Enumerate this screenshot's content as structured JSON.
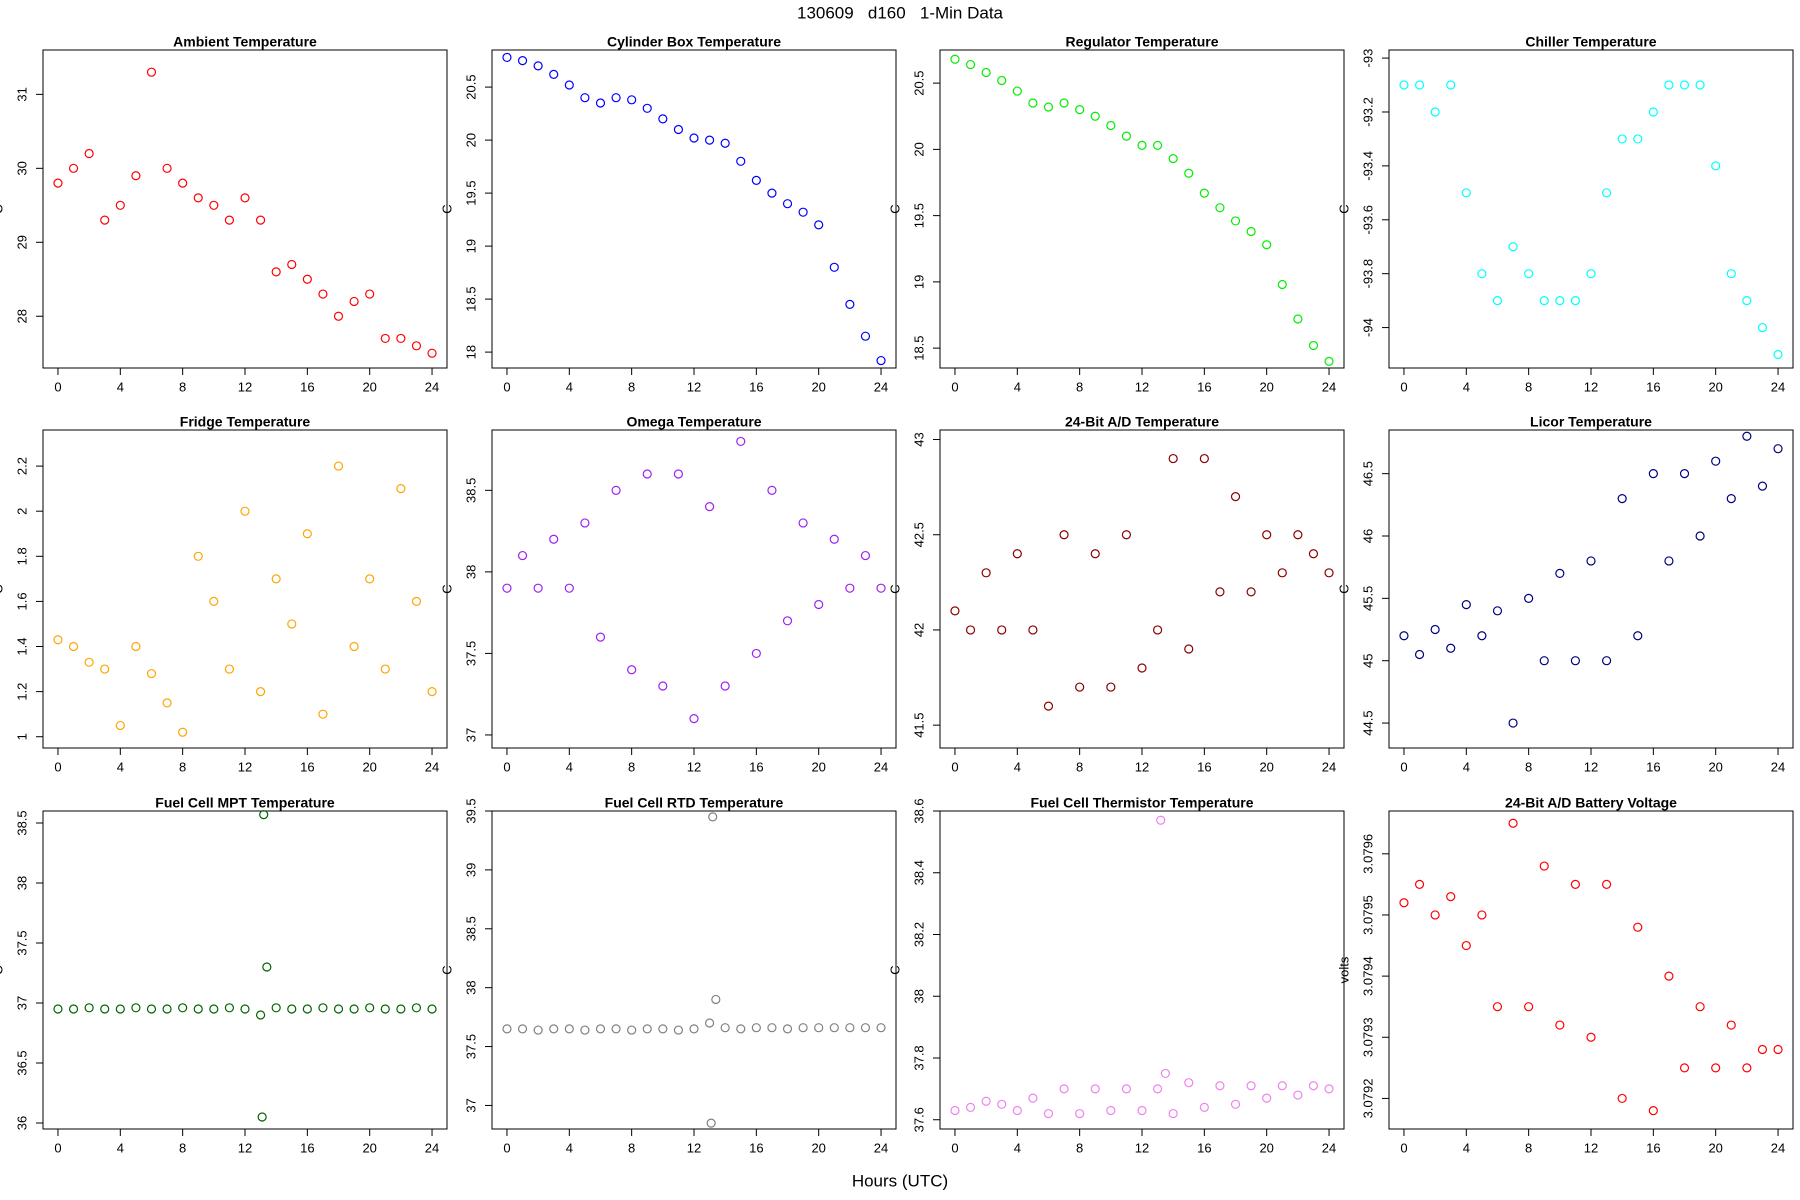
{
  "title": "130609   d160   1-Min Data",
  "x_label": "Hours (UTC)",
  "chart_data": [
    {
      "type": "scatter",
      "title": "Ambient Temperature",
      "y_label": "C",
      "color": "#ff0000",
      "x": [
        0,
        1,
        2,
        3,
        4,
        5,
        6,
        7,
        8,
        9,
        10,
        11,
        12,
        13,
        14,
        15,
        16,
        17,
        18,
        19,
        20,
        21,
        22,
        23,
        24
      ],
      "values": [
        29.8,
        30.0,
        30.2,
        29.3,
        29.5,
        29.9,
        31.3,
        30.0,
        29.8,
        29.6,
        29.5,
        29.3,
        29.6,
        29.3,
        28.6,
        28.7,
        28.5,
        28.3,
        28.0,
        28.2,
        28.3,
        27.7,
        27.7,
        27.6,
        27.5
      ],
      "xlim": [
        -0.96,
        24.96
      ],
      "xticks": [
        0,
        4,
        8,
        12,
        16,
        20,
        24
      ],
      "ylim": [
        27.3,
        31.6
      ],
      "yticks": [
        28,
        29,
        30,
        31
      ]
    },
    {
      "type": "scatter",
      "title": "Cylinder Box Temperature",
      "y_label": "C",
      "color": "#0000ff",
      "x": [
        0,
        1,
        2,
        3,
        4,
        5,
        6,
        7,
        8,
        9,
        10,
        11,
        12,
        13,
        14,
        15,
        16,
        17,
        18,
        19,
        20,
        21,
        22,
        23,
        24
      ],
      "values": [
        20.78,
        20.75,
        20.7,
        20.62,
        20.52,
        20.4,
        20.35,
        20.4,
        20.38,
        20.3,
        20.2,
        20.1,
        20.02,
        20.0,
        19.97,
        19.8,
        19.62,
        19.5,
        19.4,
        19.32,
        19.2,
        18.8,
        18.45,
        18.15,
        17.92
      ],
      "xlim": [
        -0.96,
        24.96
      ],
      "xticks": [
        0,
        4,
        8,
        12,
        16,
        20,
        24
      ],
      "ylim": [
        17.85,
        20.85
      ],
      "yticks": [
        18.0,
        18.5,
        19.0,
        19.5,
        20.0,
        20.5
      ]
    },
    {
      "type": "scatter",
      "title": "Regulator Temperature",
      "y_label": "C",
      "color": "#00ee00",
      "x": [
        0,
        1,
        2,
        3,
        4,
        5,
        6,
        7,
        8,
        9,
        10,
        11,
        12,
        13,
        14,
        15,
        16,
        17,
        18,
        19,
        20,
        21,
        22,
        23,
        24
      ],
      "values": [
        20.68,
        20.64,
        20.58,
        20.52,
        20.44,
        20.35,
        20.32,
        20.35,
        20.3,
        20.25,
        20.18,
        20.1,
        20.03,
        20.03,
        19.93,
        19.82,
        19.67,
        19.56,
        19.46,
        19.38,
        19.28,
        18.98,
        18.72,
        18.52,
        18.4
      ],
      "xlim": [
        -0.96,
        24.96
      ],
      "xticks": [
        0,
        4,
        8,
        12,
        16,
        20,
        24
      ],
      "ylim": [
        18.35,
        20.75
      ],
      "yticks": [
        18.5,
        19.0,
        19.5,
        20.0,
        20.5
      ]
    },
    {
      "type": "scatter",
      "title": "Chiller Temperature",
      "y_label": "C",
      "color": "#00ffff",
      "x": [
        0,
        1,
        2,
        3,
        4,
        5,
        6,
        7,
        8,
        9,
        10,
        11,
        12,
        13,
        14,
        15,
        16,
        17,
        18,
        19,
        20,
        21,
        22,
        23,
        24
      ],
      "values": [
        -93.1,
        -93.1,
        -93.2,
        -93.1,
        -93.5,
        -93.8,
        -93.9,
        -93.7,
        -93.8,
        -93.9,
        -93.9,
        -93.9,
        -93.8,
        -93.5,
        -93.3,
        -93.3,
        -93.2,
        -93.1,
        -93.1,
        -93.1,
        -93.4,
        -93.8,
        -93.9,
        -94.0,
        -94.1
      ],
      "xlim": [
        -0.96,
        24.96
      ],
      "xticks": [
        0,
        4,
        8,
        12,
        16,
        20,
        24
      ],
      "ylim": [
        -94.15,
        -92.97
      ],
      "yticks": [
        -94.0,
        -93.8,
        -93.6,
        -93.4,
        -93.2,
        -93.0
      ]
    },
    {
      "type": "scatter",
      "title": "Fridge Temperature",
      "y_label": "C",
      "color": "#ffa500",
      "x": [
        0,
        1,
        2,
        3,
        4,
        5,
        6,
        7,
        8,
        9,
        10,
        11,
        12,
        13,
        14,
        15,
        16,
        17,
        18,
        19,
        20,
        21,
        22,
        23,
        24
      ],
      "values": [
        1.43,
        1.4,
        1.33,
        1.3,
        1.05,
        1.4,
        1.28,
        1.15,
        1.02,
        1.8,
        1.6,
        1.3,
        2.0,
        1.2,
        1.7,
        1.5,
        1.9,
        1.1,
        2.2,
        1.4,
        1.7,
        1.3,
        2.1,
        1.6,
        1.2
      ],
      "xlim": [
        -0.96,
        24.96
      ],
      "xticks": [
        0,
        4,
        8,
        12,
        16,
        20,
        24
      ],
      "ylim": [
        0.95,
        2.36
      ],
      "yticks": [
        1.0,
        1.2,
        1.4,
        1.6,
        1.8,
        2.0,
        2.2
      ]
    },
    {
      "type": "scatter",
      "title": "Omega Temperature",
      "y_label": "C",
      "color": "#a020f0",
      "x": [
        0,
        1,
        2,
        3,
        4,
        5,
        6,
        7,
        8,
        9,
        10,
        11,
        12,
        13,
        14,
        15,
        16,
        17,
        18,
        19,
        20,
        21,
        22,
        23,
        24
      ],
      "values": [
        37.9,
        38.1,
        37.9,
        38.2,
        37.9,
        38.3,
        37.6,
        38.5,
        37.4,
        38.6,
        37.3,
        38.6,
        37.1,
        38.4,
        37.3,
        38.8,
        37.5,
        38.5,
        37.7,
        38.3,
        37.8,
        38.2,
        37.9,
        38.1,
        37.9
      ],
      "xlim": [
        -0.96,
        24.96
      ],
      "xticks": [
        0,
        4,
        8,
        12,
        16,
        20,
        24
      ],
      "ylim": [
        36.92,
        38.87
      ],
      "yticks": [
        37.0,
        37.5,
        38.0,
        38.5
      ]
    },
    {
      "type": "scatter",
      "title": "24-Bit A/D Temperature",
      "y_label": "C",
      "color": "#8b0000",
      "x": [
        0,
        1,
        2,
        3,
        4,
        5,
        6,
        7,
        8,
        9,
        10,
        11,
        12,
        13,
        14,
        15,
        16,
        17,
        18,
        19,
        20,
        21,
        22,
        23,
        24
      ],
      "values": [
        42.1,
        42.0,
        42.3,
        42.0,
        42.4,
        42.0,
        41.6,
        42.5,
        41.7,
        42.4,
        41.7,
        42.5,
        41.8,
        42.0,
        42.9,
        41.9,
        42.9,
        42.2,
        42.7,
        42.2,
        42.5,
        42.3,
        42.5,
        42.4,
        42.3
      ],
      "xlim": [
        -0.96,
        24.96
      ],
      "xticks": [
        0,
        4,
        8,
        12,
        16,
        20,
        24
      ],
      "ylim": [
        41.38,
        43.05
      ],
      "yticks": [
        41.5,
        42.0,
        42.5,
        43.0
      ]
    },
    {
      "type": "scatter",
      "title": "Licor Temperature",
      "y_label": "C",
      "color": "#000080",
      "x": [
        0,
        1,
        2,
        3,
        4,
        5,
        6,
        7,
        8,
        9,
        10,
        11,
        12,
        13,
        14,
        15,
        16,
        17,
        18,
        19,
        20,
        21,
        22,
        23,
        24
      ],
      "values": [
        45.2,
        45.05,
        45.25,
        45.1,
        45.45,
        45.2,
        45.4,
        44.5,
        45.5,
        45.0,
        45.7,
        45.0,
        45.8,
        45.0,
        46.3,
        45.2,
        46.5,
        45.8,
        46.5,
        46.0,
        46.6,
        46.3,
        46.8,
        46.4,
        46.7
      ],
      "xlim": [
        -0.96,
        24.96
      ],
      "xticks": [
        0,
        4,
        8,
        12,
        16,
        20,
        24
      ],
      "ylim": [
        44.3,
        46.85
      ],
      "yticks": [
        44.5,
        45.0,
        45.5,
        46.0,
        46.5
      ]
    },
    {
      "type": "scatter",
      "title": "Fuel Cell MPT Temperature",
      "y_label": "C",
      "color": "#006400",
      "x": [
        0,
        1,
        2,
        3,
        4,
        5,
        6,
        7,
        8,
        9,
        10,
        11,
        12,
        13,
        13.1,
        13.2,
        13.4,
        14,
        15,
        16,
        17,
        18,
        19,
        20,
        21,
        22,
        23,
        24
      ],
      "values": [
        36.95,
        36.95,
        36.96,
        36.95,
        36.95,
        36.96,
        36.95,
        36.95,
        36.96,
        36.95,
        36.95,
        36.96,
        36.95,
        36.9,
        36.05,
        38.57,
        37.3,
        36.96,
        36.95,
        36.95,
        36.96,
        36.95,
        36.95,
        36.96,
        36.95,
        36.95,
        36.96,
        36.95
      ],
      "xlim": [
        -0.96,
        24.96
      ],
      "xticks": [
        0,
        4,
        8,
        12,
        16,
        20,
        24
      ],
      "ylim": [
        35.95,
        38.6
      ],
      "yticks": [
        36.0,
        36.5,
        37.0,
        37.5,
        38.0,
        38.5
      ]
    },
    {
      "type": "scatter",
      "title": "Fuel Cell RTD Temperature",
      "y_label": "C",
      "color": "#808080",
      "x": [
        0,
        1,
        2,
        3,
        4,
        5,
        6,
        7,
        8,
        9,
        10,
        11,
        12,
        13,
        13.1,
        13.2,
        13.4,
        14,
        15,
        16,
        17,
        18,
        19,
        20,
        21,
        22,
        23,
        24
      ],
      "values": [
        37.65,
        37.65,
        37.64,
        37.65,
        37.65,
        37.64,
        37.65,
        37.65,
        37.64,
        37.65,
        37.65,
        37.64,
        37.65,
        37.7,
        36.85,
        39.45,
        37.9,
        37.66,
        37.65,
        37.66,
        37.66,
        37.65,
        37.66,
        37.66,
        37.66,
        37.66,
        37.66,
        37.66
      ],
      "xlim": [
        -0.96,
        24.96
      ],
      "xticks": [
        0,
        4,
        8,
        12,
        16,
        20,
        24
      ],
      "ylim": [
        36.8,
        39.5
      ],
      "yticks": [
        37.0,
        37.5,
        38.0,
        38.5,
        39.0,
        39.5
      ]
    },
    {
      "type": "scatter",
      "title": "Fuel Cell Thermistor Temperature",
      "y_label": "C",
      "color": "#ee82ee",
      "x": [
        0,
        1,
        2,
        3,
        4,
        5,
        6,
        7,
        8,
        9,
        10,
        11,
        12,
        13,
        13.2,
        13.5,
        14,
        15,
        16,
        17,
        18,
        19,
        20,
        21,
        22,
        23,
        24
      ],
      "values": [
        37.63,
        37.64,
        37.66,
        37.65,
        37.63,
        37.67,
        37.62,
        37.7,
        37.62,
        37.7,
        37.63,
        37.7,
        37.63,
        37.7,
        38.57,
        37.75,
        37.62,
        37.72,
        37.64,
        37.71,
        37.65,
        37.71,
        37.67,
        37.71,
        37.68,
        37.71,
        37.7
      ],
      "xlim": [
        -0.96,
        24.96
      ],
      "xticks": [
        0,
        4,
        8,
        12,
        16,
        20,
        24
      ],
      "ylim": [
        37.57,
        38.6
      ],
      "yticks": [
        37.6,
        37.8,
        38.0,
        38.2,
        38.4,
        38.6
      ]
    },
    {
      "type": "scatter",
      "title": "24-Bit A/D Battery Voltage",
      "y_label": "volts",
      "color": "#ff0000",
      "x": [
        0,
        1,
        2,
        3,
        4,
        5,
        6,
        7,
        8,
        9,
        10,
        11,
        12,
        13,
        14,
        15,
        16,
        17,
        18,
        19,
        20,
        21,
        22,
        23,
        24
      ],
      "values": [
        3.07952,
        3.07955,
        3.0795,
        3.07953,
        3.07945,
        3.0795,
        3.07935,
        3.07965,
        3.07935,
        3.07958,
        3.07932,
        3.07955,
        3.0793,
        3.07955,
        3.0792,
        3.07948,
        3.07918,
        3.0794,
        3.07925,
        3.07935,
        3.07925,
        3.07932,
        3.07925,
        3.07928,
        3.07928
      ],
      "xlim": [
        -0.96,
        24.96
      ],
      "xticks": [
        0,
        4,
        8,
        12,
        16,
        20,
        24
      ],
      "ylim": [
        3.07915,
        3.07967
      ],
      "yticks": [
        3.0792,
        3.0793,
        3.0794,
        3.0795,
        3.0796
      ]
    }
  ]
}
